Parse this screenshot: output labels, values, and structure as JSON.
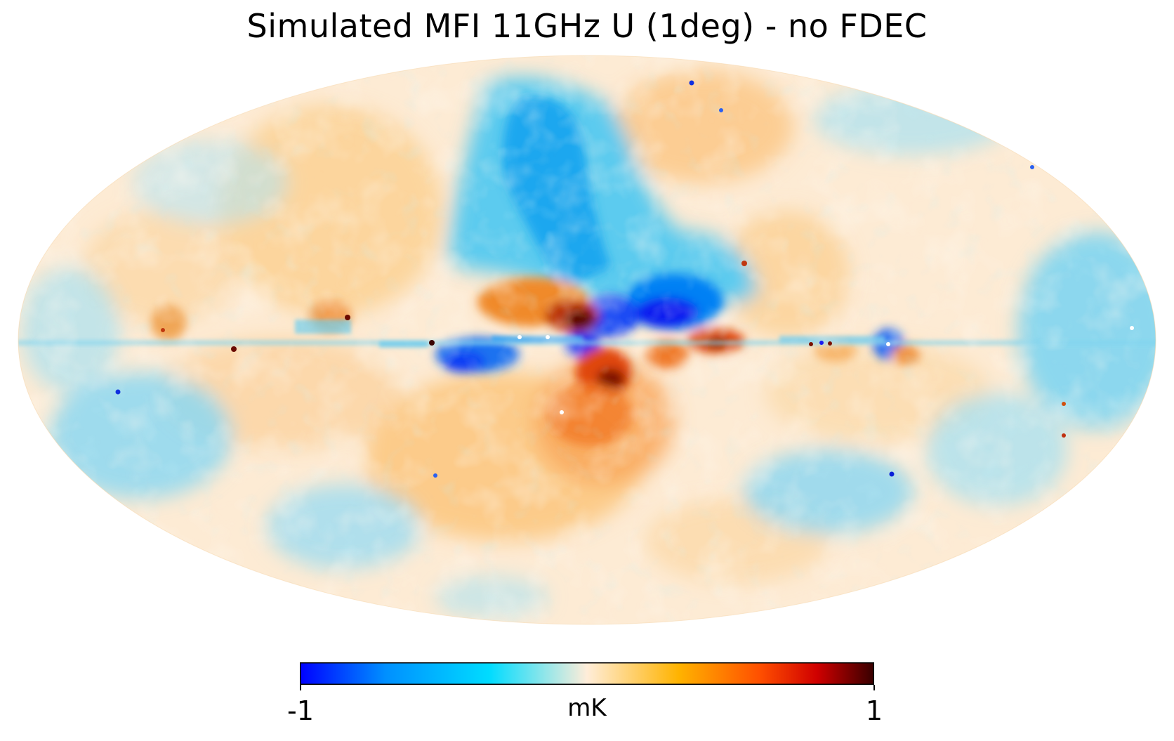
{
  "title": "Simulated MFI 11GHz U (1deg) - no FDEC",
  "map": {
    "projection": "mollweide",
    "field": "Stokes U polarization",
    "frequency": "11GHz",
    "resolution": "1deg",
    "features": [
      {
        "name": "galactic-plane-band",
        "lon_range": [
          -180,
          180
        ],
        "lat_range": [
          -3,
          3
        ],
        "value": "mixed strong"
      },
      {
        "name": "north-polar-spur-negative",
        "lon": 15,
        "lat": 45,
        "value": -0.55
      },
      {
        "name": "central-negative-blob",
        "lon": -12,
        "lat": 10,
        "value": -0.9
      },
      {
        "name": "central-positive-blob",
        "lon": 5,
        "lat": 6,
        "value": 0.85
      },
      {
        "name": "south-positive-lobe",
        "lon": 0,
        "lat": -25,
        "value": 0.5
      },
      {
        "name": "south-east-negative",
        "lon": 110,
        "lat": -40,
        "value": -0.3
      },
      {
        "name": "south-west-negative",
        "lon": -100,
        "lat": -30,
        "value": -0.3
      },
      {
        "name": "west-negative",
        "lon": -160,
        "lat": 5,
        "value": -0.3
      }
    ]
  },
  "colorbar": {
    "min_label": "-1",
    "max_label": "1",
    "unit": "mK",
    "min": -1,
    "max": 1,
    "colors": [
      "#0000ff",
      "#0090ff",
      "#00dcff",
      "#ffedd9",
      "#ffb300",
      "#ff5000",
      "#d00000",
      "#360000"
    ]
  }
}
